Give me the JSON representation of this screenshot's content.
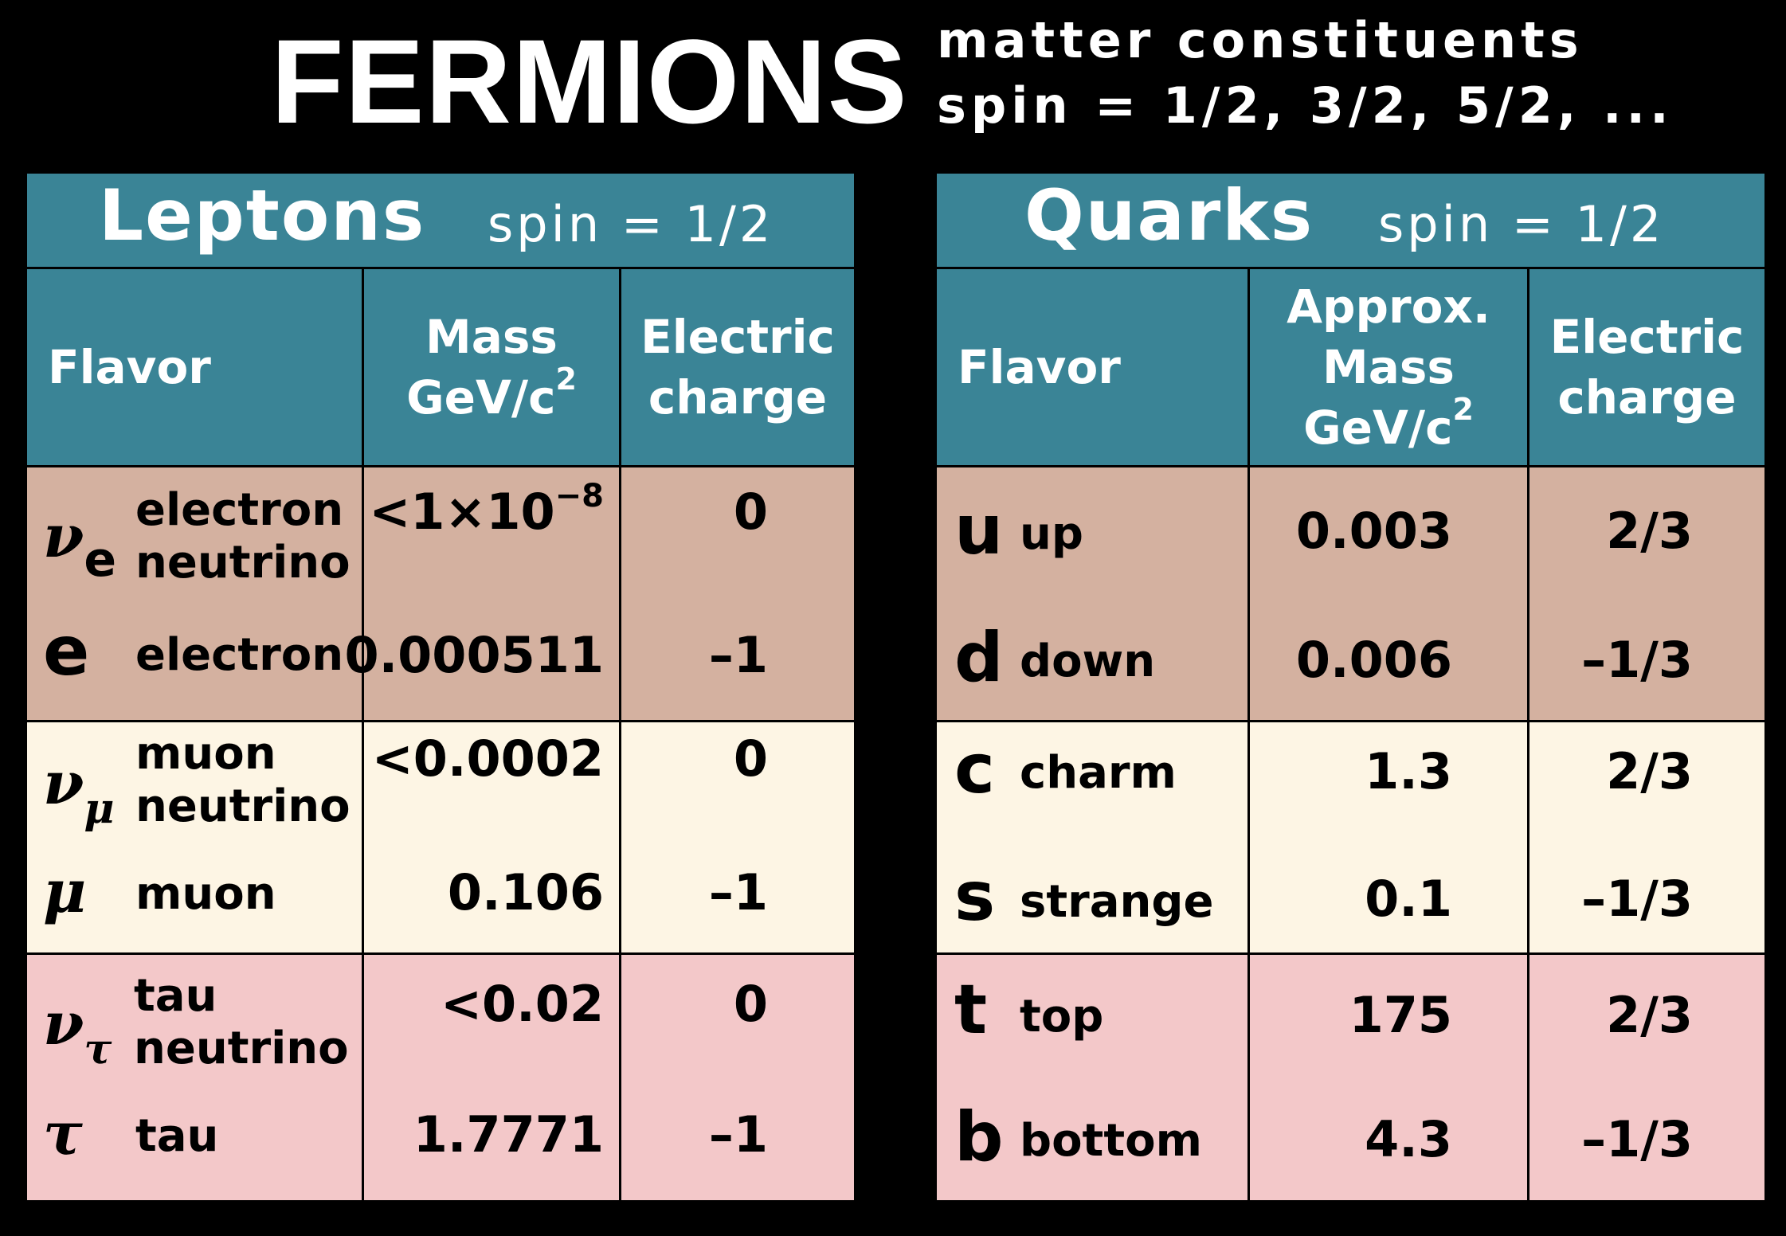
{
  "title": "FERMIONS",
  "subtitle": {
    "line1": "matter constituents",
    "line2": "spin = 1/2, 3/2, 5/2, ..."
  },
  "colors": {
    "header_bg": "#3a8496",
    "gen1_bg": "#d4b1a0",
    "gen2_bg": "#fdf5e4",
    "gen3_bg": "#f3c8c9",
    "page_bg": "#000000"
  },
  "leptons": {
    "title": "Leptons",
    "spin": "spin = 1/2",
    "headers": {
      "flavor": "Flavor",
      "mass_line1": "Mass",
      "mass_line2": "GeV/c",
      "mass_exp": "2",
      "charge_line1": "Electric",
      "charge_line2": "charge"
    },
    "rows": [
      {
        "symbol": "ν",
        "sub": "e",
        "name_line1": "electron",
        "name_line2": "neutrino",
        "mass": "<1×10",
        "mass_exp": "−8",
        "charge": "0"
      },
      {
        "symbol": "e",
        "sub": "",
        "name_line1": "electron",
        "name_line2": "",
        "mass": "0.000511",
        "mass_exp": "",
        "charge": "–1"
      },
      {
        "symbol": "ν",
        "sub": "μ",
        "name_line1": "muon",
        "name_line2": "neutrino",
        "mass": "<0.0002",
        "mass_exp": "",
        "charge": "0"
      },
      {
        "symbol": "μ",
        "sub": "",
        "name_line1": "muon",
        "name_line2": "",
        "mass": "0.106",
        "mass_exp": "",
        "charge": "–1"
      },
      {
        "symbol": "ν",
        "sub": "τ",
        "name_line1": "tau",
        "name_line2": "neutrino",
        "mass": "<0.02",
        "mass_exp": "",
        "charge": "0"
      },
      {
        "symbol": "τ",
        "sub": "",
        "name_line1": "tau",
        "name_line2": "",
        "mass": "1.7771",
        "mass_exp": "",
        "charge": "–1"
      }
    ]
  },
  "quarks": {
    "title": "Quarks",
    "spin": "spin = 1/2",
    "headers": {
      "flavor": "Flavor",
      "mass_line0": "Approx.",
      "mass_line1": "Mass",
      "mass_line2": "GeV/c",
      "mass_exp": "2",
      "charge_line1": "Electric",
      "charge_line2": "charge"
    },
    "rows": [
      {
        "symbol": "u",
        "name": "up",
        "mass": "0.003",
        "charge": "2/3"
      },
      {
        "symbol": "d",
        "name": "down",
        "mass": "0.006",
        "charge": "–1/3"
      },
      {
        "symbol": "c",
        "name": "charm",
        "mass": "1.3",
        "charge": "2/3"
      },
      {
        "symbol": "s",
        "name": "strange",
        "mass": "0.1",
        "charge": "–1/3"
      },
      {
        "symbol": "t",
        "name": "top",
        "mass": "175",
        "charge": "2/3"
      },
      {
        "symbol": "b",
        "name": "bottom",
        "mass": "4.3",
        "charge": "–1/3"
      }
    ]
  }
}
